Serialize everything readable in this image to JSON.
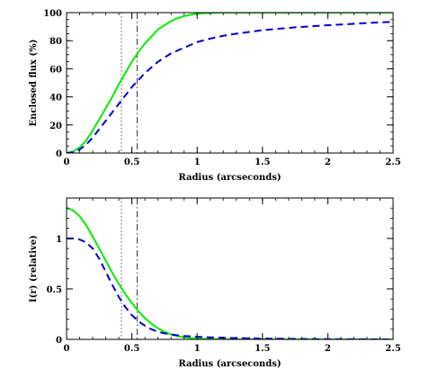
{
  "chart_data": [
    {
      "type": "line",
      "xlabel": "Radius (arcseconds)",
      "ylabel": "Enclosed flux (%)",
      "xlim": [
        0,
        2.5
      ],
      "ylim": [
        0,
        100
      ],
      "x_ticks": [
        "0",
        "0.5",
        "1",
        "1.5",
        "2",
        "2.5"
      ],
      "y_ticks": [
        "0",
        "20",
        "40",
        "60",
        "80",
        "100"
      ],
      "x_tick_values": [
        0,
        0.5,
        1,
        1.5,
        2,
        2.5
      ],
      "y_tick_values": [
        0,
        20,
        40,
        60,
        80,
        100
      ],
      "x_minor_step": 0.1,
      "y_minor_step": 5,
      "vlines": [
        {
          "x": 0.42,
          "style": "dotted",
          "color": "#555555"
        },
        {
          "x": 0.54,
          "style": "dash-dot",
          "color": "#333333"
        }
      ],
      "series": [
        {
          "color": "#00ee00",
          "style": "solid",
          "x": [
            0,
            0.05,
            0.1,
            0.15,
            0.2,
            0.25,
            0.3,
            0.35,
            0.4,
            0.45,
            0.5,
            0.55,
            0.6,
            0.65,
            0.7,
            0.75,
            0.8,
            0.85,
            0.9,
            0.95,
            1.0,
            1.05,
            1.1,
            1.2,
            1.3,
            1.5,
            2.0,
            2.5
          ],
          "y": [
            0,
            1,
            4,
            9,
            16,
            24,
            32,
            40,
            49,
            57,
            65,
            72,
            78,
            83,
            88,
            91,
            94,
            96,
            97.5,
            98.5,
            99.2,
            99.6,
            99.8,
            100,
            100,
            100,
            100,
            100
          ]
        },
        {
          "color": "#0000cc",
          "style": "dashed",
          "x": [
            0,
            0.05,
            0.1,
            0.15,
            0.2,
            0.25,
            0.3,
            0.35,
            0.4,
            0.45,
            0.5,
            0.55,
            0.6,
            0.65,
            0.7,
            0.8,
            0.9,
            1.0,
            1.1,
            1.2,
            1.3,
            1.5,
            1.75,
            2.0,
            2.25,
            2.5
          ],
          "y": [
            0,
            0.5,
            2.5,
            6,
            11,
            17,
            23,
            29,
            35,
            41,
            47,
            52,
            57,
            61,
            65,
            71,
            75,
            79,
            81.5,
            83.5,
            85,
            87.5,
            89.5,
            91,
            92.3,
            93.5
          ]
        }
      ]
    },
    {
      "type": "line",
      "xlabel": "Radius (arcseconds)",
      "ylabel": "I(r) (relative)",
      "xlim": [
        0,
        2.5
      ],
      "ylim": [
        0,
        1.4
      ],
      "x_ticks": [
        "0",
        "0.5",
        "1",
        "1.5",
        "2",
        "2.5"
      ],
      "y_ticks": [
        "0",
        "0.5",
        "1"
      ],
      "x_tick_values": [
        0,
        0.5,
        1,
        1.5,
        2,
        2.5
      ],
      "y_tick_values": [
        0,
        0.5,
        1
      ],
      "x_minor_step": 0.1,
      "y_minor_step": 0.1,
      "vlines": [
        {
          "x": 0.42,
          "style": "dotted",
          "color": "#555555"
        },
        {
          "x": 0.54,
          "style": "dash-dot",
          "color": "#333333"
        }
      ],
      "series": [
        {
          "color": "#00ee00",
          "style": "solid",
          "x": [
            0,
            0.05,
            0.1,
            0.15,
            0.2,
            0.25,
            0.3,
            0.35,
            0.4,
            0.45,
            0.5,
            0.55,
            0.6,
            0.65,
            0.7,
            0.75,
            0.8,
            0.85,
            0.9,
            0.95,
            1.0,
            1.1,
            1.2,
            1.4,
            2.5
          ],
          "y": [
            1.3,
            1.28,
            1.22,
            1.13,
            1.02,
            0.9,
            0.78,
            0.66,
            0.55,
            0.45,
            0.36,
            0.28,
            0.21,
            0.155,
            0.11,
            0.075,
            0.05,
            0.033,
            0.021,
            0.013,
            0.008,
            0.003,
            0.001,
            0,
            0
          ]
        },
        {
          "color": "#0000cc",
          "style": "dashed",
          "x": [
            0,
            0.05,
            0.1,
            0.15,
            0.2,
            0.25,
            0.3,
            0.35,
            0.4,
            0.45,
            0.5,
            0.55,
            0.6,
            0.65,
            0.7,
            0.75,
            0.8,
            0.85,
            0.9,
            1.0,
            1.1,
            1.25,
            1.5,
            1.75,
            2.0,
            2.5
          ],
          "y": [
            1.0,
            1.0,
            0.99,
            0.96,
            0.9,
            0.8,
            0.67,
            0.54,
            0.42,
            0.32,
            0.24,
            0.18,
            0.135,
            0.1,
            0.075,
            0.06,
            0.048,
            0.04,
            0.034,
            0.026,
            0.02,
            0.014,
            0.008,
            0.004,
            0.002,
            0
          ]
        }
      ]
    }
  ]
}
